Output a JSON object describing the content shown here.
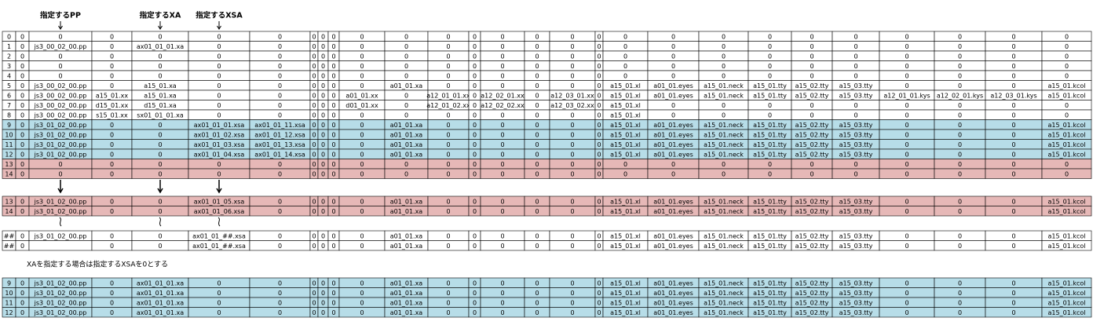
{
  "header": {
    "labels": [
      {
        "text": "指定するPP",
        "column": 2
      },
      {
        "text": "指定するXA",
        "column": 4
      },
      {
        "text": "指定するXSA",
        "column": 5
      }
    ]
  },
  "note": "XAを指定する場合は指定するXSAを0とする",
  "blocks": [
    {
      "rows": [
        {
          "fill": "#ffffff",
          "cells": [
            "0",
            "0",
            "0",
            "0",
            "0",
            "0",
            "0",
            "0",
            "0",
            "0",
            "0",
            "0",
            "0",
            "0",
            "0",
            "0",
            "0",
            "0",
            "0",
            "0",
            "0",
            "0",
            "0",
            "0",
            "0",
            "0",
            "0",
            "0"
          ]
        },
        {
          "fill": "#ffffff",
          "cells": [
            "1",
            "0",
            "js3_00_02_00.pp",
            "0",
            "ax01_01_01.xa",
            "0",
            "0",
            "0",
            "0",
            "0",
            "0",
            "0",
            "0",
            "0",
            "0",
            "0",
            "0",
            "0",
            "0",
            "0",
            "0",
            "0",
            "0",
            "0",
            "0",
            "0",
            "0",
            "0"
          ]
        },
        {
          "fill": "#ffffff",
          "cells": [
            "2",
            "0",
            "0",
            "0",
            "0",
            "0",
            "0",
            "0",
            "0",
            "0",
            "0",
            "0",
            "0",
            "0",
            "0",
            "0",
            "0",
            "0",
            "0",
            "0",
            "0",
            "0",
            "0",
            "0",
            "0",
            "0",
            "0",
            "0"
          ]
        },
        {
          "fill": "#ffffff",
          "cells": [
            "3",
            "0",
            "0",
            "0",
            "0",
            "0",
            "0",
            "0",
            "0",
            "0",
            "0",
            "0",
            "0",
            "0",
            "0",
            "0",
            "0",
            "0",
            "0",
            "0",
            "0",
            "0",
            "0",
            "0",
            "0",
            "0",
            "0",
            "0"
          ]
        },
        {
          "fill": "#ffffff",
          "cells": [
            "4",
            "0",
            "0",
            "0",
            "0",
            "0",
            "0",
            "0",
            "0",
            "0",
            "0",
            "0",
            "0",
            "0",
            "0",
            "0",
            "0",
            "0",
            "0",
            "0",
            "0",
            "0",
            "0",
            "0",
            "0",
            "0",
            "0",
            "0"
          ]
        },
        {
          "fill": "#ffffff",
          "cells": [
            "5",
            "0",
            "js3_00_02_00.pp",
            "0",
            "a15_01.xa",
            "0",
            "0",
            "0",
            "0",
            "0",
            "0",
            "a01_01.xa",
            "0",
            "0",
            "0",
            "0",
            "0",
            "0",
            "a15_01.xl",
            "a01_01.eyes",
            "a15_01.neck",
            "a15_01.tty",
            "a15_02.tty",
            "a15_03.tty",
            "0",
            "0",
            "0",
            "a15_01.kcol"
          ]
        },
        {
          "fill": "#ffffff",
          "cells": [
            "6",
            "0",
            "js3_00_02_00.pp",
            "a15_01.xx",
            "a15_01.xa",
            "0",
            "0",
            "0",
            "0",
            "0",
            "a01_01.xx",
            "0",
            "a12_01_01.xx",
            "0",
            "a12_02_01.xx",
            "0",
            "a12_03_01.xx",
            "0",
            "a15_01.xl",
            "a01_01.eyes",
            "a15_01.neck",
            "a15_01.tty",
            "a15_02.tty",
            "a15_03.tty",
            "a12_01_01.kys",
            "a12_02_01.kys",
            "a12_03_01.kys",
            "a15_01.kcol"
          ]
        },
        {
          "fill": "#ffffff",
          "cells": [
            "7",
            "0",
            "js3_00_02_00.pp",
            "d15_01.xx",
            "d15_01.xa",
            "0",
            "0",
            "0",
            "0",
            "0",
            "d01_01.xx",
            "0",
            "a12_01_02.xx",
            "0",
            "a12_02_02.xx",
            "0",
            "a12_03_02.xx",
            "0",
            "a15_01.xl",
            "0",
            "0",
            "0",
            "0",
            "0",
            "0",
            "0",
            "0",
            "0"
          ]
        },
        {
          "fill": "#ffffff",
          "cells": [
            "8",
            "0",
            "js3_00_02_00.pp",
            "s15_01.xx",
            "sx01_01_01.xa",
            "0",
            "0",
            "0",
            "0",
            "0",
            "0",
            "0",
            "0",
            "0",
            "0",
            "0",
            "0",
            "0",
            "a15_01.xl",
            "0",
            "0",
            "0",
            "0",
            "0",
            "0",
            "0",
            "0",
            "0"
          ]
        },
        {
          "fill": "#b7dde8",
          "cells": [
            "9",
            "0",
            "js3_01_02_00.pp",
            "0",
            "0",
            "ax01_01_01.xsa",
            "ax01_01_11.xsa",
            "0",
            "0",
            "0",
            "0",
            "a01_01.xa",
            "0",
            "0",
            "0",
            "0",
            "0",
            "0",
            "a15_01.xl",
            "a01_01.eyes",
            "a15_01.neck",
            "a15_01.tty",
            "a15_02.tty",
            "a15_03.tty",
            "0",
            "0",
            "0",
            "a15_01.kcol"
          ]
        },
        {
          "fill": "#b7dde8",
          "cells": [
            "10",
            "0",
            "js3_01_02_00.pp",
            "0",
            "0",
            "ax01_01_02.xsa",
            "ax01_01_12.xsa",
            "0",
            "0",
            "0",
            "0",
            "a01_01.xa",
            "0",
            "0",
            "0",
            "0",
            "0",
            "0",
            "a15_01.xl",
            "a01_01.eyes",
            "a15_01.neck",
            "a15_01.tty",
            "a15_02.tty",
            "a15_03.tty",
            "0",
            "0",
            "0",
            "a15_01.kcol"
          ]
        },
        {
          "fill": "#b7dde8",
          "cells": [
            "11",
            "0",
            "js3_01_02_00.pp",
            "0",
            "0",
            "ax01_01_03.xsa",
            "ax01_01_13.xsa",
            "0",
            "0",
            "0",
            "0",
            "a01_01.xa",
            "0",
            "0",
            "0",
            "0",
            "0",
            "0",
            "a15_01.xl",
            "a01_01.eyes",
            "a15_01.neck",
            "a15_01.tty",
            "a15_02.tty",
            "a15_03.tty",
            "0",
            "0",
            "0",
            "a15_01.kcol"
          ]
        },
        {
          "fill": "#b7dde8",
          "cells": [
            "12",
            "0",
            "js3_01_02_00.pp",
            "0",
            "0",
            "ax01_01_04.xsa",
            "ax01_01_14.xsa",
            "0",
            "0",
            "0",
            "0",
            "a01_01.xa",
            "0",
            "0",
            "0",
            "0",
            "0",
            "0",
            "a15_01.xl",
            "a01_01.eyes",
            "a15_01.neck",
            "a15_01.tty",
            "a15_02.tty",
            "a15_03.tty",
            "0",
            "0",
            "0",
            "a15_01.kcol"
          ]
        },
        {
          "fill": "#e6b8b7",
          "cells": [
            "13",
            "0",
            "0",
            "0",
            "0",
            "0",
            "0",
            "0",
            "0",
            "0",
            "0",
            "0",
            "0",
            "0",
            "0",
            "0",
            "0",
            "0",
            "0",
            "0",
            "0",
            "0",
            "0",
            "0",
            "0",
            "0",
            "0",
            "0"
          ]
        },
        {
          "fill": "#e6b8b7",
          "cells": [
            "14",
            "0",
            "0",
            "0",
            "0",
            "0",
            "0",
            "0",
            "0",
            "0",
            "0",
            "0",
            "0",
            "0",
            "0",
            "0",
            "0",
            "0",
            "0",
            "0",
            "0",
            "0",
            "0",
            "0",
            "0",
            "0",
            "0",
            "0"
          ]
        }
      ]
    },
    {
      "rows": [
        {
          "fill": "#e6b8b7",
          "cells": [
            "13",
            "0",
            "js3_01_02_00.pp",
            "0",
            "0",
            "ax01_01_05.xsa",
            "0",
            "0",
            "0",
            "0",
            "0",
            "a01_01.xa",
            "0",
            "0",
            "0",
            "0",
            "0",
            "0",
            "a15_01.xl",
            "a01_01.eyes",
            "a15_01.neck",
            "a15_01.tty",
            "a15_02.tty",
            "a15_03.tty",
            "0",
            "0",
            "0",
            "a15_01.kcol"
          ]
        },
        {
          "fill": "#e6b8b7",
          "cells": [
            "14",
            "0",
            "js3_01_02_00.pp",
            "0",
            "0",
            "ax01_01_06.xsa",
            "0",
            "0",
            "0",
            "0",
            "0",
            "a01_01.xa",
            "0",
            "0",
            "0",
            "0",
            "0",
            "0",
            "a15_01.xl",
            "a01_01.eyes",
            "a15_01.neck",
            "a15_01.tty",
            "a15_02.tty",
            "a15_03.tty",
            "0",
            "0",
            "0",
            "a15_01.kcol"
          ]
        }
      ]
    },
    {
      "rows": [
        {
          "fill": "#ffffff",
          "cells": [
            "##",
            "0",
            "js3_01_02_00.pp",
            "0",
            "0",
            "ax01_01_##.xsa",
            "0",
            "0",
            "0",
            "0",
            "0",
            "a01_01.xa",
            "0",
            "0",
            "0",
            "0",
            "0",
            "0",
            "a15_01.xl",
            "a01_01.eyes",
            "a15_01.neck",
            "a15_01.tty",
            "a15_02.tty",
            "a15_03.tty",
            "0",
            "0",
            "0",
            "a15_01.kcol"
          ]
        },
        {
          "fill": "#ffffff",
          "cells": [
            "##",
            "0",
            null,
            "0",
            "0",
            "ax01_01_##.xsa",
            "0",
            "0",
            "0",
            "0",
            "0",
            "a01_01.xa",
            "0",
            "0",
            "0",
            "0",
            "0",
            "0",
            "a15_01.xl",
            "a01_01.eyes",
            "a15_01.neck",
            "a15_01.tty",
            "a15_02.tty",
            "a15_03.tty",
            "0",
            "0",
            "0",
            "a15_01.kcol"
          ]
        }
      ]
    },
    {
      "rows": [
        {
          "fill": "#b7dde8",
          "cells": [
            "9",
            "0",
            "js3_01_02_00.pp",
            "0",
            "ax01_01_01.xa",
            "0",
            "0",
            "0",
            "0",
            "0",
            "0",
            "a01_01.xa",
            "0",
            "0",
            "0",
            "0",
            "0",
            "0",
            "a15_01.xl",
            "a01_01.eyes",
            "a15_01.neck",
            "a15_01.tty",
            "a15_02.tty",
            "a15_03.tty",
            "0",
            "0",
            "0",
            "a15_01.kcol"
          ]
        },
        {
          "fill": "#b7dde8",
          "cells": [
            "10",
            "0",
            "js3_01_02_00.pp",
            "0",
            "ax01_01_01.xa",
            "0",
            "0",
            "0",
            "0",
            "0",
            "0",
            "a01_01.xa",
            "0",
            "0",
            "0",
            "0",
            "0",
            "0",
            "a15_01.xl",
            "a01_01.eyes",
            "a15_01.neck",
            "a15_01.tty",
            "a15_02.tty",
            "a15_03.tty",
            "0",
            "0",
            "0",
            "a15_01.kcol"
          ]
        },
        {
          "fill": "#b7dde8",
          "cells": [
            "11",
            "0",
            "js3_01_02_00.pp",
            "0",
            "ax01_01_01.xa",
            "0",
            "0",
            "0",
            "0",
            "0",
            "0",
            "a01_01.xa",
            "0",
            "0",
            "0",
            "0",
            "0",
            "0",
            "a15_01.xl",
            "a01_01.eyes",
            "a15_01.neck",
            "a15_01.tty",
            "a15_02.tty",
            "a15_03.tty",
            "0",
            "0",
            "0",
            "a15_01.kcol"
          ]
        },
        {
          "fill": "#b7dde8",
          "cells": [
            "12",
            "0",
            "js3_01_02_00.pp",
            "0",
            "ax01_01_01.xa",
            "0",
            "0",
            "0",
            "0",
            "0",
            "0",
            "a01_01.xa",
            "0",
            "0",
            "0",
            "0",
            "0",
            "0",
            "a15_01.xl",
            "a01_01.eyes",
            "a15_01.neck",
            "a15_01.tty",
            "a15_02.tty",
            "a15_03.tty",
            "0",
            "0",
            "0",
            "a15_01.kcol"
          ]
        }
      ]
    }
  ]
}
